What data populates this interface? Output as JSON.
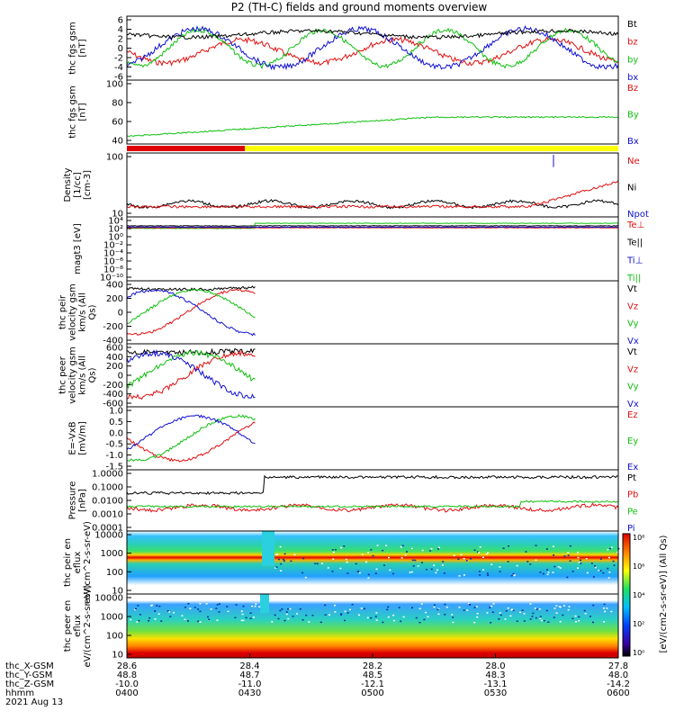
{
  "title": "P2 (TH-C) fields and ground moments overview",
  "colorbar_label": "[eV/(cm2-s-sr-eV)] (All Qs)",
  "colorbar_ticks": [
    "10⁸",
    "10⁶",
    "10⁴",
    "10²",
    "10⁰"
  ],
  "date_label": "2021 Aug 13",
  "position_table": {
    "row_labels": [
      "thc_X-GSM",
      "thc_Y-GSM",
      "thc_Z-GSM",
      "hhmm"
    ],
    "columns": [
      {
        "values": [
          "28.6",
          "48.8",
          "-10.0",
          "0400"
        ]
      },
      {
        "values": [
          "28.4",
          "48.7",
          "-11.0",
          "0430"
        ]
      },
      {
        "values": [
          "28.2",
          "48.5",
          "-12.1",
          "0500"
        ]
      },
      {
        "values": [
          "28.0",
          "48.3",
          "-13.1",
          "0530"
        ]
      },
      {
        "values": [
          "27.8",
          "48.0",
          "-14.2",
          "0600"
        ]
      }
    ]
  },
  "chart_data": [
    {
      "type": "line",
      "ylabel": "thc fgs gsm [nT]",
      "yticks": [
        "6",
        "4",
        "2",
        "0",
        "-2",
        "-4",
        "-6"
      ],
      "ylim": [
        -6,
        6
      ],
      "legend": [
        {
          "name": "Bt",
          "color": "#000000"
        },
        {
          "name": "bz",
          "color": "#e01010"
        },
        {
          "name": "by",
          "color": "#10c010"
        },
        {
          "name": "bx",
          "color": "#1010d0"
        }
      ]
    },
    {
      "type": "line",
      "ylabel": "thc fgs gsm [nT]",
      "yticks": [
        "100",
        "80",
        "60",
        "40"
      ],
      "ylim": [
        25,
        100
      ],
      "legend": [
        {
          "name": "Bz",
          "color": "#e01010"
        },
        {
          "name": "By",
          "color": "#10c010"
        },
        {
          "name": "Bx",
          "color": "#1010d0"
        }
      ]
    },
    {
      "type": "bar",
      "ylabel": "",
      "yticks": [],
      "bar_segments": [
        {
          "x_start": "0400",
          "x_end": "0430",
          "color": "#e00000"
        },
        {
          "x_start": "0430",
          "x_end": "0600",
          "color": "#ffff00"
        }
      ]
    },
    {
      "type": "line",
      "ylabel": "Density [1/cc] [cm-3]",
      "yticks": [
        "100",
        "10"
      ],
      "ylim": [
        1,
        300
      ],
      "legend": [
        {
          "name": "Ne",
          "color": "#e01010"
        },
        {
          "name": "Ni",
          "color": "#000000"
        },
        {
          "name": "Npot",
          "color": "#1010d0"
        }
      ]
    },
    {
      "type": "line",
      "ylabel": "magt3 [eV]",
      "yticks": [
        "10⁴",
        "10²",
        "10⁰",
        "10⁻²",
        "10⁻⁴",
        "10⁻⁶",
        "10⁻⁸",
        "10⁻¹⁰"
      ],
      "legend": [
        {
          "name": "Te⊥",
          "color": "#e01010"
        },
        {
          "name": "Te||",
          "color": "#000000"
        },
        {
          "name": "Ti⊥",
          "color": "#1010d0"
        },
        {
          "name": "Ti||",
          "color": "#10c010"
        }
      ]
    },
    {
      "type": "line",
      "ylabel": "thc peir velocity gsm km/s (All Qs)",
      "yticks": [
        "400",
        "200",
        "0",
        "-200",
        "-400"
      ],
      "ylim": [
        -450,
        450
      ],
      "legend": [
        {
          "name": "Vt",
          "color": "#000000"
        },
        {
          "name": "Vz",
          "color": "#e01010"
        },
        {
          "name": "Vy",
          "color": "#10c010"
        },
        {
          "name": "Vx",
          "color": "#1010d0"
        }
      ]
    },
    {
      "type": "line",
      "ylabel": "thc peer velocity gsm km/s (All Qs)",
      "yticks": [
        "600",
        "400",
        "200",
        "0",
        "-200",
        "-400",
        "-600"
      ],
      "ylim": [
        -650,
        650
      ],
      "legend": [
        {
          "name": "Vt",
          "color": "#000000"
        },
        {
          "name": "Vz",
          "color": "#e01010"
        },
        {
          "name": "Vy",
          "color": "#10c010"
        },
        {
          "name": "Vx",
          "color": "#1010d0"
        }
      ]
    },
    {
      "type": "line",
      "ylabel": "E=-VxB [mV/m]",
      "yticks": [
        "1.0",
        "0.5",
        "0.0",
        "-0.5",
        "-1.0",
        "-1.5"
      ],
      "ylim": [
        -1.6,
        1.1
      ],
      "legend": [
        {
          "name": "Ez",
          "color": "#e01010"
        },
        {
          "name": "Ey",
          "color": "#10c010"
        },
        {
          "name": "Ex",
          "color": "#1010d0"
        }
      ]
    },
    {
      "type": "line",
      "ylabel": "Pressure [nPa]",
      "yticks": [
        "1.0000",
        "0.1000",
        "0.0100",
        "0.0010",
        "0.0001"
      ],
      "legend": [
        {
          "name": "Pt",
          "color": "#000000"
        },
        {
          "name": "Pb",
          "color": "#e01010"
        },
        {
          "name": "Pe",
          "color": "#10c010"
        },
        {
          "name": "Pi",
          "color": "#1010d0"
        }
      ]
    },
    {
      "type": "heatmap",
      "ylabel": "thc peir en eflux eV/(cm^2-s-sr-eV)",
      "yticks": [
        "10000",
        "1000",
        "100",
        "10"
      ]
    },
    {
      "type": "heatmap",
      "ylabel": "thc peer en eflux eV/(cm^2-s-sr-eV)",
      "yticks": [
        "10000",
        "1000",
        "100",
        "10"
      ]
    }
  ]
}
